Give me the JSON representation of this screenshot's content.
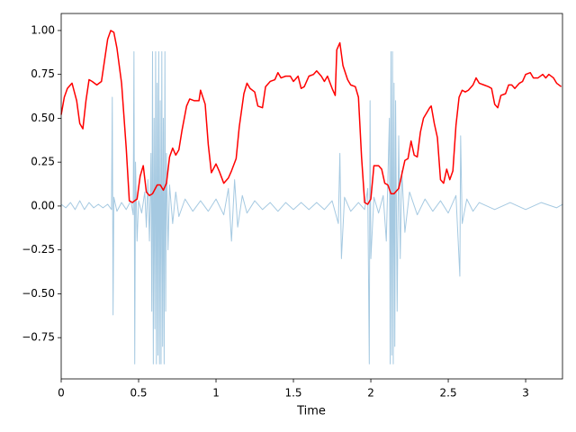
{
  "chart_data": {
    "type": "line",
    "xlabel": "Time",
    "xlim": [
      0,
      3.238
    ],
    "ylim": [
      -0.985,
      1.097
    ],
    "xticks": [
      0,
      0.5,
      1,
      1.5,
      2,
      2.5,
      3
    ],
    "yticks": [
      {
        "value": -0.75,
        "label": "−0.75"
      },
      {
        "value": -0.5,
        "label": "−0.50"
      },
      {
        "value": -0.25,
        "label": "−0.25"
      },
      {
        "value": 0,
        "label": "0.00"
      },
      {
        "value": 0.25,
        "label": "0.25"
      },
      {
        "value": 0.5,
        "label": "0.50"
      },
      {
        "value": 0.75,
        "label": "0.75"
      },
      {
        "value": 1,
        "label": "1.00"
      }
    ],
    "series": [
      {
        "color": "#1f77b4",
        "alpha": 0.4,
        "x": [
          0,
          0.03,
          0.06,
          0.09,
          0.12,
          0.15,
          0.18,
          0.21,
          0.24,
          0.27,
          0.3,
          0.325,
          0.33,
          0.335,
          0.34,
          0.36,
          0.39,
          0.42,
          0.45,
          0.465,
          0.47,
          0.475,
          0.48,
          0.49,
          0.5,
          0.52,
          0.54,
          0.55,
          0.56,
          0.57,
          0.58,
          0.585,
          0.59,
          0.595,
          0.6,
          0.605,
          0.61,
          0.615,
          0.62,
          0.625,
          0.63,
          0.635,
          0.64,
          0.645,
          0.65,
          0.655,
          0.66,
          0.665,
          0.67,
          0.675,
          0.68,
          0.69,
          0.7,
          0.72,
          0.74,
          0.76,
          0.8,
          0.85,
          0.9,
          0.95,
          1.0,
          1.05,
          1.08,
          1.1,
          1.12,
          1.14,
          1.17,
          1.2,
          1.25,
          1.3,
          1.35,
          1.4,
          1.45,
          1.5,
          1.55,
          1.6,
          1.65,
          1.7,
          1.75,
          1.79,
          1.8,
          1.81,
          1.83,
          1.87,
          1.92,
          1.96,
          1.98,
          1.99,
          1.995,
          2.0,
          2.02,
          2.05,
          2.08,
          2.1,
          2.12,
          2.125,
          2.13,
          2.135,
          2.14,
          2.145,
          2.15,
          2.155,
          2.16,
          2.17,
          2.18,
          2.19,
          2.2,
          2.22,
          2.25,
          2.3,
          2.35,
          2.4,
          2.45,
          2.5,
          2.55,
          2.575,
          2.58,
          2.59,
          2.62,
          2.66,
          2.7,
          2.8,
          2.9,
          3.0,
          3.1,
          3.2,
          3.24
        ],
        "values": [
          0.01,
          -0.01,
          0.02,
          -0.02,
          0.03,
          -0.02,
          0.02,
          -0.01,
          0.01,
          -0.01,
          0.01,
          -0.02,
          0.62,
          -0.62,
          0.05,
          -0.03,
          0.02,
          -0.02,
          0.03,
          -0.05,
          0.88,
          -0.9,
          0.25,
          -0.2,
          0.03,
          -0.04,
          0.08,
          -0.12,
          0.15,
          -0.2,
          0.3,
          -0.6,
          0.88,
          -0.9,
          0.5,
          -0.7,
          0.88,
          -0.9,
          0.7,
          -0.85,
          0.88,
          -0.9,
          0.6,
          -0.9,
          0.88,
          -0.8,
          0.5,
          -0.9,
          0.88,
          -0.6,
          0.3,
          -0.25,
          0.12,
          -0.1,
          0.08,
          -0.06,
          0.04,
          -0.03,
          0.03,
          -0.03,
          0.04,
          -0.05,
          0.1,
          -0.2,
          0.15,
          -0.12,
          0.06,
          -0.04,
          0.03,
          -0.02,
          0.02,
          -0.03,
          0.02,
          -0.02,
          0.02,
          -0.02,
          0.02,
          -0.02,
          0.03,
          -0.1,
          0.3,
          -0.3,
          0.05,
          -0.03,
          0.02,
          -0.02,
          0.1,
          -0.9,
          0.6,
          -0.3,
          0.05,
          -0.04,
          0.06,
          -0.2,
          0.5,
          -0.9,
          0.88,
          -0.85,
          0.88,
          -0.9,
          0.7,
          -0.8,
          0.6,
          -0.6,
          0.4,
          -0.3,
          0.2,
          -0.15,
          0.08,
          -0.05,
          0.04,
          -0.03,
          0.03,
          -0.04,
          0.06,
          -0.4,
          0.4,
          -0.1,
          0.04,
          -0.03,
          0.02,
          -0.02,
          0.02,
          -0.02,
          0.02,
          -0.01,
          0.01
        ]
      },
      {
        "color": "#ff0000",
        "alpha": 1,
        "x": [
          0,
          0.02,
          0.04,
          0.07,
          0.1,
          0.12,
          0.14,
          0.16,
          0.18,
          0.2,
          0.23,
          0.26,
          0.3,
          0.32,
          0.34,
          0.36,
          0.39,
          0.42,
          0.44,
          0.46,
          0.49,
          0.51,
          0.53,
          0.55,
          0.57,
          0.59,
          0.62,
          0.64,
          0.66,
          0.68,
          0.7,
          0.72,
          0.74,
          0.76,
          0.78,
          0.81,
          0.83,
          0.86,
          0.89,
          0.9,
          0.93,
          0.95,
          0.97,
          1.0,
          1.02,
          1.05,
          1.08,
          1.1,
          1.13,
          1.15,
          1.18,
          1.2,
          1.22,
          1.25,
          1.27,
          1.3,
          1.32,
          1.35,
          1.38,
          1.4,
          1.42,
          1.45,
          1.48,
          1.5,
          1.53,
          1.55,
          1.57,
          1.6,
          1.63,
          1.65,
          1.68,
          1.7,
          1.72,
          1.75,
          1.77,
          1.78,
          1.8,
          1.82,
          1.85,
          1.87,
          1.9,
          1.92,
          1.94,
          1.96,
          1.98,
          2.0,
          2.02,
          2.05,
          2.07,
          2.09,
          2.11,
          2.13,
          2.15,
          2.18,
          2.2,
          2.22,
          2.24,
          2.26,
          2.28,
          2.3,
          2.32,
          2.34,
          2.36,
          2.38,
          2.39,
          2.41,
          2.43,
          2.45,
          2.47,
          2.49,
          2.51,
          2.53,
          2.55,
          2.57,
          2.59,
          2.61,
          2.63,
          2.66,
          2.68,
          2.7,
          2.73,
          2.76,
          2.78,
          2.8,
          2.82,
          2.84,
          2.87,
          2.89,
          2.91,
          2.93,
          2.96,
          2.98,
          3.0,
          3.03,
          3.05,
          3.08,
          3.11,
          3.13,
          3.15,
          3.18,
          3.2,
          3.23
        ],
        "values": [
          0.52,
          0.62,
          0.67,
          0.7,
          0.6,
          0.47,
          0.44,
          0.6,
          0.72,
          0.71,
          0.69,
          0.71,
          0.95,
          1.0,
          0.99,
          0.9,
          0.7,
          0.33,
          0.03,
          0.02,
          0.04,
          0.17,
          0.23,
          0.08,
          0.06,
          0.07,
          0.12,
          0.12,
          0.09,
          0.13,
          0.28,
          0.33,
          0.29,
          0.32,
          0.43,
          0.57,
          0.61,
          0.6,
          0.6,
          0.66,
          0.58,
          0.35,
          0.19,
          0.24,
          0.2,
          0.13,
          0.16,
          0.2,
          0.27,
          0.45,
          0.64,
          0.7,
          0.67,
          0.65,
          0.57,
          0.56,
          0.68,
          0.71,
          0.72,
          0.76,
          0.73,
          0.74,
          0.74,
          0.71,
          0.74,
          0.67,
          0.68,
          0.74,
          0.75,
          0.77,
          0.74,
          0.71,
          0.74,
          0.67,
          0.63,
          0.89,
          0.93,
          0.8,
          0.72,
          0.69,
          0.68,
          0.62,
          0.28,
          0.02,
          0.01,
          0.04,
          0.23,
          0.23,
          0.21,
          0.13,
          0.12,
          0.07,
          0.07,
          0.1,
          0.18,
          0.26,
          0.27,
          0.37,
          0.29,
          0.28,
          0.42,
          0.5,
          0.53,
          0.56,
          0.57,
          0.47,
          0.39,
          0.15,
          0.13,
          0.21,
          0.15,
          0.2,
          0.46,
          0.62,
          0.66,
          0.65,
          0.66,
          0.69,
          0.73,
          0.7,
          0.69,
          0.68,
          0.67,
          0.58,
          0.56,
          0.63,
          0.64,
          0.69,
          0.69,
          0.67,
          0.7,
          0.71,
          0.75,
          0.76,
          0.73,
          0.73,
          0.75,
          0.73,
          0.75,
          0.73,
          0.7,
          0.68
        ]
      }
    ]
  }
}
